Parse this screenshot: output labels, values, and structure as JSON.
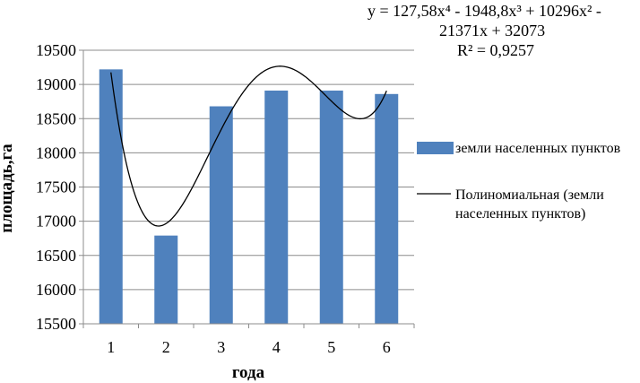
{
  "chart_data": {
    "type": "bar",
    "categories": [
      "1",
      "2",
      "3",
      "4",
      "5",
      "6"
    ],
    "series": [
      {
        "name": "земли населенных пунктов",
        "values": [
          19220,
          16790,
          18680,
          18910,
          18910,
          18860
        ],
        "color": "#4F81BD"
      }
    ],
    "trendline": {
      "name": "Полиномиальная (земли населенных пунктов)",
      "type": "polynomial",
      "order": 4,
      "equation_lines": [
        "y = 127,58x⁴ - 1948,8x³ + 10296x² -",
        "21371x + 32073",
        "R² = 0,9257"
      ],
      "coefficients": [
        127.58,
        -1948.8,
        10296,
        -21371,
        32073
      ],
      "color": "#000000"
    },
    "xlabel": "года",
    "ylabel": "площадь,га",
    "ylim": [
      15500,
      19500
    ],
    "ytick_step": 500,
    "yticks": [
      "15500",
      "16000",
      "16500",
      "17000",
      "17500",
      "18000",
      "18500",
      "19000",
      "19500"
    ],
    "grid": true,
    "legend_position": "right"
  }
}
